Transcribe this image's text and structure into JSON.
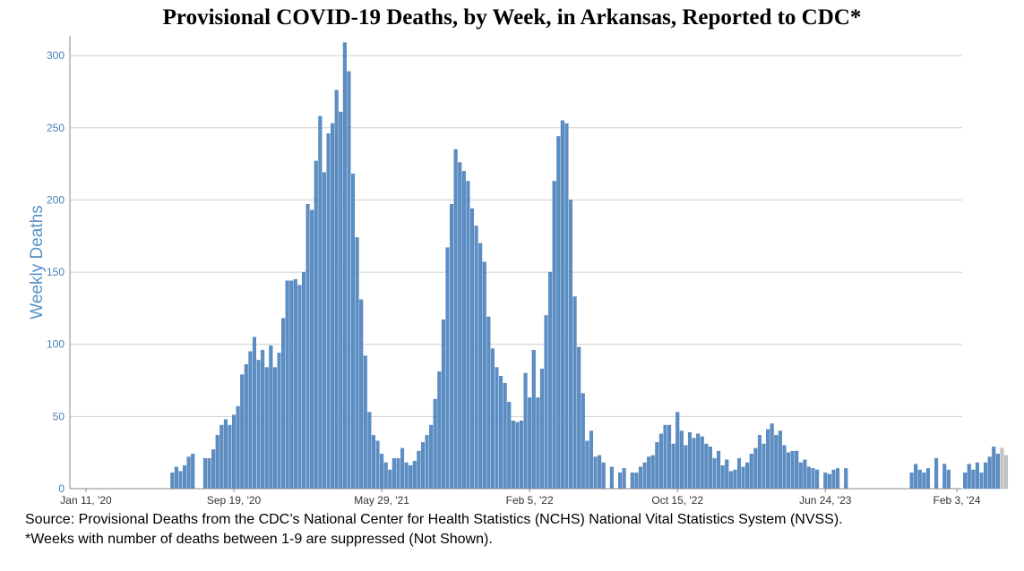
{
  "chart_data": {
    "type": "bar",
    "title": "Provisional COVID-19 Deaths, by Week, in Arkansas, Reported to CDC*",
    "ylabel": "Weekly Deaths",
    "xlabel": "",
    "ylim": [
      0,
      310
    ],
    "y_ticks": [
      0,
      50,
      100,
      150,
      200,
      250,
      300
    ],
    "x_start": "2020-01-11",
    "x_end": "2024-02-03",
    "x_ticks": [
      {
        "label": "Jan 11, '20",
        "date": "2020-01-11"
      },
      {
        "label": "Sep 19, '20",
        "date": "2020-09-19"
      },
      {
        "label": "May 29, '21",
        "date": "2021-05-29"
      },
      {
        "label": "Feb 5, '22",
        "date": "2022-02-05"
      },
      {
        "label": "Oct 15, '22",
        "date": "2022-10-15"
      },
      {
        "label": "Jun 24, '23",
        "date": "2023-06-24"
      },
      {
        "label": "Feb 3, '24",
        "date": "2024-02-03"
      }
    ],
    "grid": true,
    "legend": "none",
    "bar_color": "#5b8ec4",
    "provisional_bar_color": "#c4c4c4",
    "provisional_last_weeks": 2,
    "values": [
      0,
      0,
      0,
      0,
      0,
      0,
      0,
      0,
      0,
      0,
      0,
      0,
      0,
      0,
      0,
      0,
      0,
      0,
      0,
      0,
      0,
      11,
      15,
      12,
      16,
      22,
      24,
      0,
      0,
      21,
      21,
      27,
      37,
      44,
      48,
      44,
      51,
      57,
      79,
      86,
      95,
      105,
      89,
      96,
      84,
      99,
      84,
      94,
      118,
      144,
      144,
      145,
      141,
      150,
      197,
      193,
      227,
      258,
      219,
      246,
      253,
      276,
      261,
      309,
      289,
      218,
      174,
      131,
      92,
      53,
      37,
      33,
      24,
      18,
      13,
      21,
      21,
      28,
      18,
      16,
      19,
      26,
      32,
      37,
      44,
      62,
      81,
      117,
      167,
      197,
      235,
      226,
      220,
      213,
      194,
      182,
      170,
      157,
      119,
      97,
      84,
      78,
      73,
      60,
      47,
      46,
      47,
      80,
      63,
      96,
      63,
      83,
      120,
      150,
      213,
      244,
      255,
      253,
      200,
      133,
      98,
      66,
      33,
      40,
      22,
      23,
      18,
      0,
      15,
      0,
      11,
      14,
      0,
      11,
      11,
      15,
      18,
      22,
      23,
      32,
      38,
      44,
      44,
      31,
      53,
      40,
      30,
      39,
      35,
      38,
      36,
      31,
      29,
      21,
      26,
      16,
      20,
      12,
      13,
      21,
      15,
      18,
      24,
      28,
      37,
      31,
      41,
      45,
      37,
      40,
      30,
      25,
      26,
      26,
      18,
      20,
      15,
      14,
      13,
      0,
      11,
      10,
      13,
      14,
      0,
      14,
      0,
      0,
      0,
      0,
      0,
      0,
      0,
      0,
      0,
      0,
      0,
      0,
      0,
      0,
      0,
      11,
      17,
      13,
      11,
      14,
      0,
      21,
      0,
      17,
      13,
      0,
      0,
      0,
      11,
      17,
      13,
      18,
      11,
      18,
      22,
      29,
      24,
      28,
      23
    ]
  },
  "footnotes": {
    "source": "Source: Provisional Deaths from the CDC’s National Center for Health Statistics (NCHS) National Vital Statistics System (NVSS).",
    "suppression": "*Weeks with number of deaths between 1-9 are suppressed (Not Shown)."
  }
}
